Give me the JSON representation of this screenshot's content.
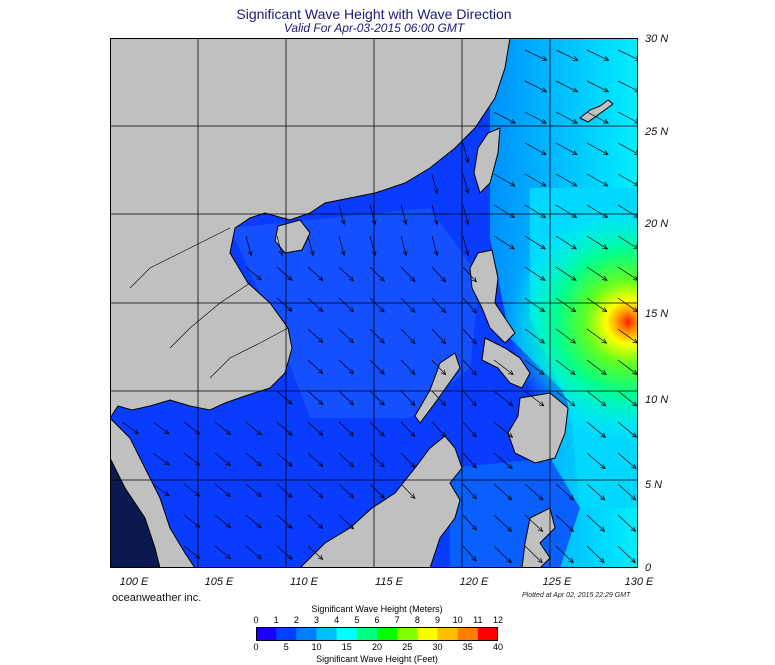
{
  "header": {
    "title": "Significant Wave Height with Wave Direction",
    "subtitle": "Valid For Apr-03-2015 06:00 GMT"
  },
  "map": {
    "lon_range": [
      100,
      130
    ],
    "lat_range": [
      0,
      30
    ],
    "lat_labels": [
      "30 N",
      "25 N",
      "20 N",
      "15 N",
      "10 N",
      "5 N",
      "0"
    ],
    "lon_labels": [
      "100 E",
      "105 E",
      "110 E",
      "115 E",
      "120 E",
      "125 E",
      "130 E"
    ],
    "land_color": "#c0c0c0",
    "max_wave_location": "15 N, 130 E"
  },
  "footer": {
    "credit": "oceanweather inc.",
    "plotted": "Plotted at Apr 02, 2015 22:29 GMT"
  },
  "colorbar": {
    "top_title": "Significant Wave Height (Meters)",
    "bottom_title": "Significant Wave Height (Feet)",
    "meters_ticks": [
      "0",
      "1",
      "2",
      "3",
      "4",
      "5",
      "6",
      "7",
      "8",
      "9",
      "10",
      "11",
      "12"
    ],
    "feet_ticks": [
      "0",
      "5",
      "10",
      "15",
      "20",
      "25",
      "30",
      "35",
      "40"
    ],
    "colors": [
      "#1a00ff",
      "#0040ff",
      "#0080ff",
      "#00bfff",
      "#00ffff",
      "#00ff80",
      "#00ff00",
      "#80ff00",
      "#ffff00",
      "#ffbf00",
      "#ff8000",
      "#ff0000"
    ]
  }
}
